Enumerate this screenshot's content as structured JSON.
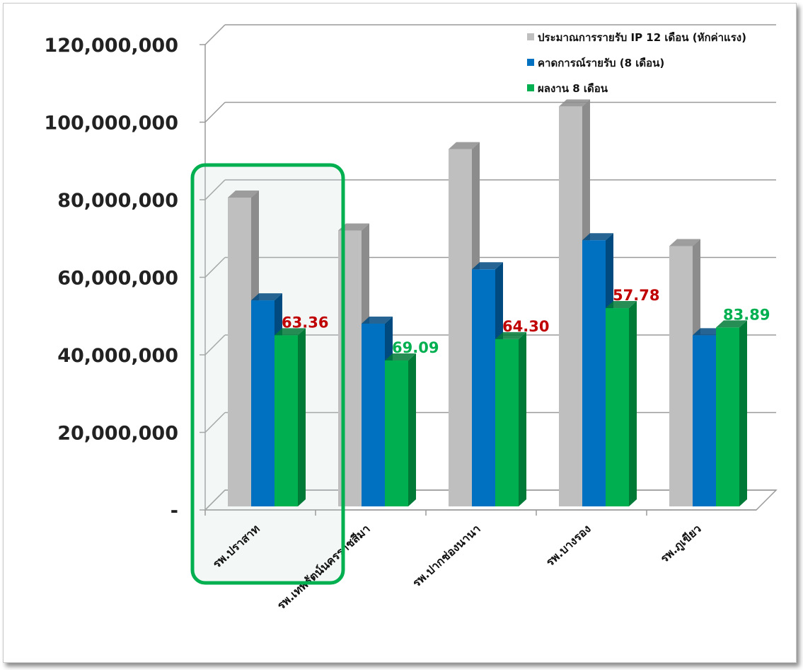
{
  "chart_data": {
    "type": "bar",
    "title": "",
    "xlabel": "",
    "ylabel": "",
    "ylim": [
      0,
      120000000
    ],
    "y_ticks": [
      {
        "value": 0,
        "label": "-"
      },
      {
        "value": 20000000,
        "label": "20,000,000"
      },
      {
        "value": 40000000,
        "label": "40,000,000"
      },
      {
        "value": 60000000,
        "label": "60,000,000"
      },
      {
        "value": 80000000,
        "label": "80,000,000"
      },
      {
        "value": 100000000,
        "label": "100,000,000"
      },
      {
        "value": 120000000,
        "label": "120,000,000"
      }
    ],
    "categories": [
      "รพ.ปราสาท",
      "รพ.เทพรัตน์นครราชสีมา",
      "รพ.ปากช่องนานา",
      "รพ.บางรอง",
      "รพ.ภูเขียว"
    ],
    "series": [
      {
        "name": "ประมาณการรายรับ IP 12 เดือน (หักค่าแรง)",
        "color": "#bfbfbf",
        "side_color": "#8c8c8c",
        "values": [
          80000000,
          71500000,
          92500000,
          103500000,
          67500000
        ]
      },
      {
        "name": "คาดการณ์รายรับ (8 เดือน)",
        "color": "#0070c0",
        "side_color": "#004a80",
        "values": [
          53500000,
          47500000,
          61500000,
          69000000,
          44500000
        ]
      },
      {
        "name": "ผลงาน 8 เดือน",
        "color": "#00b050",
        "side_color": "#007a37",
        "values": [
          44500000,
          38000000,
          43500000,
          51500000,
          46500000
        ]
      }
    ],
    "data_labels": [
      {
        "text": "63.36",
        "color": "#c00000"
      },
      {
        "text": "69.09",
        "color": "#00b050"
      },
      {
        "text": "64.30",
        "color": "#c00000"
      },
      {
        "text": "57.78",
        "color": "#c00000"
      },
      {
        "text": "83.89",
        "color": "#00b050"
      }
    ],
    "legend_position": "top-right",
    "grid": true,
    "style": "3d-clustered-column"
  },
  "highlight": {
    "category": "รพ.ปราสาท",
    "color": "#00b050"
  }
}
